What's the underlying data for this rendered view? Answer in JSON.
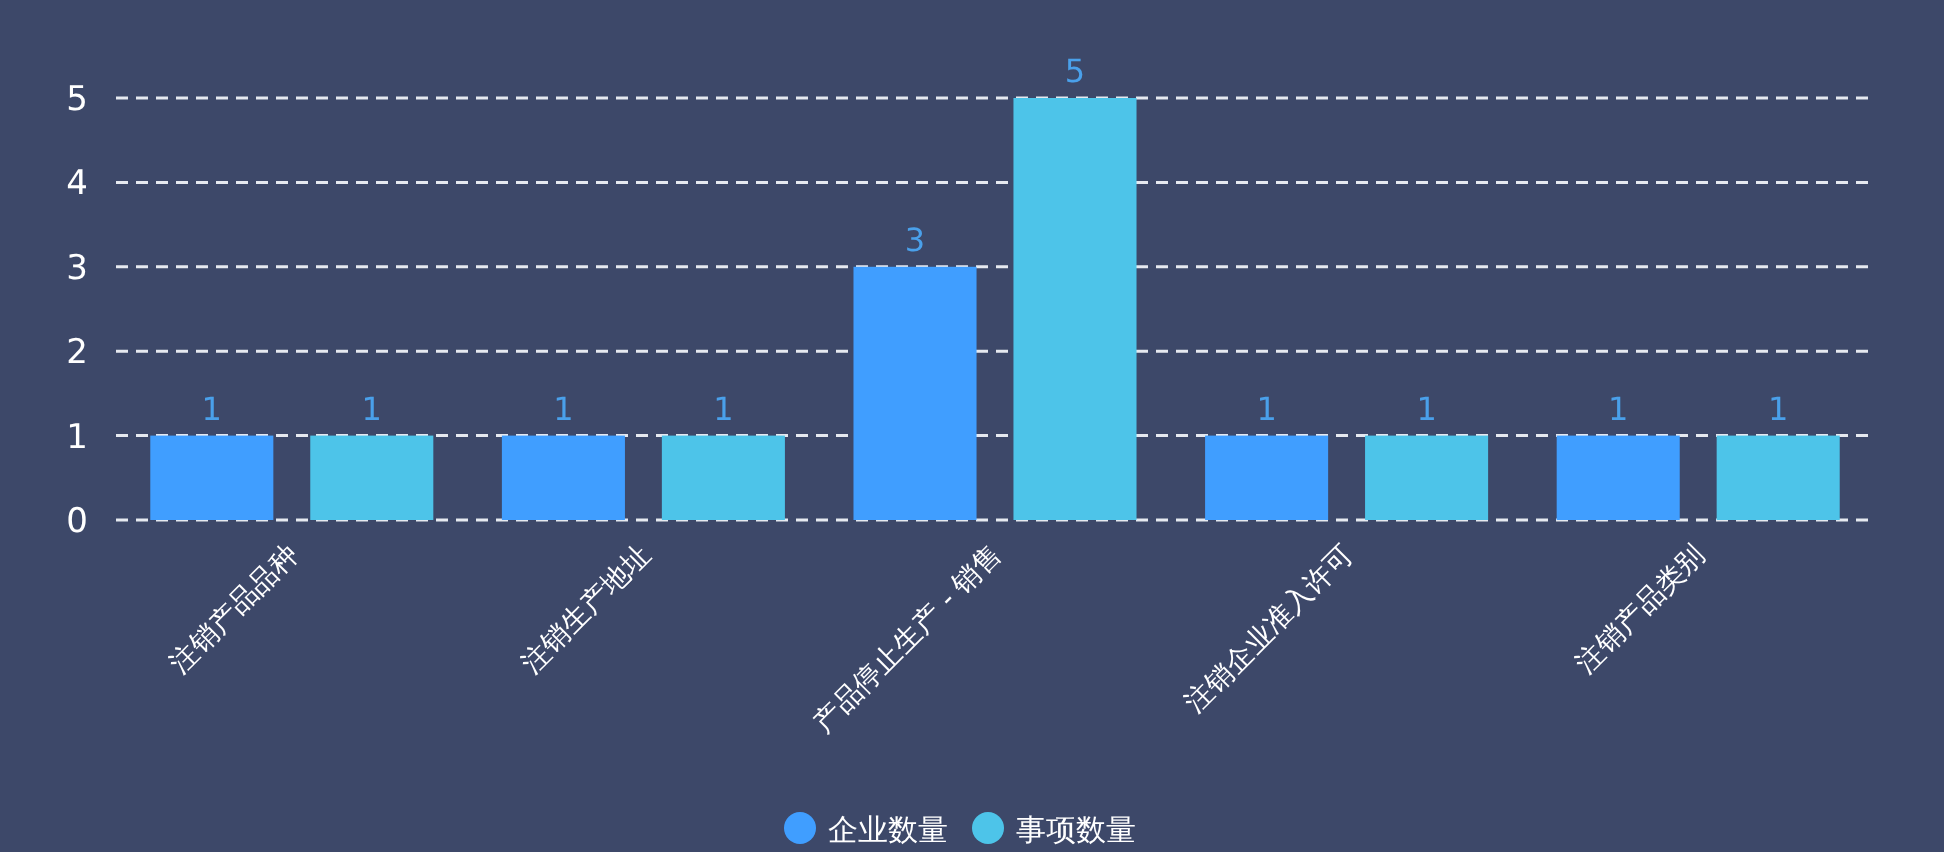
{
  "chart_data": {
    "type": "bar",
    "categories": [
      "注销产品品种",
      "注销生产地址",
      "产品停止生产 - 销售",
      "注销企业准入许可",
      "注销产品类别"
    ],
    "series": [
      {
        "name": "企业数量",
        "color": "#409eff",
        "values": [
          1,
          1,
          3,
          1,
          1
        ]
      },
      {
        "name": "事项数量",
        "color": "#4dc4e9",
        "values": [
          1,
          1,
          5,
          1,
          1
        ]
      }
    ],
    "ylim": [
      0,
      5
    ],
    "yticks": [
      0,
      1,
      2,
      3,
      4,
      5
    ],
    "grid": "y",
    "legend": "bottom",
    "data_labels": true
  }
}
